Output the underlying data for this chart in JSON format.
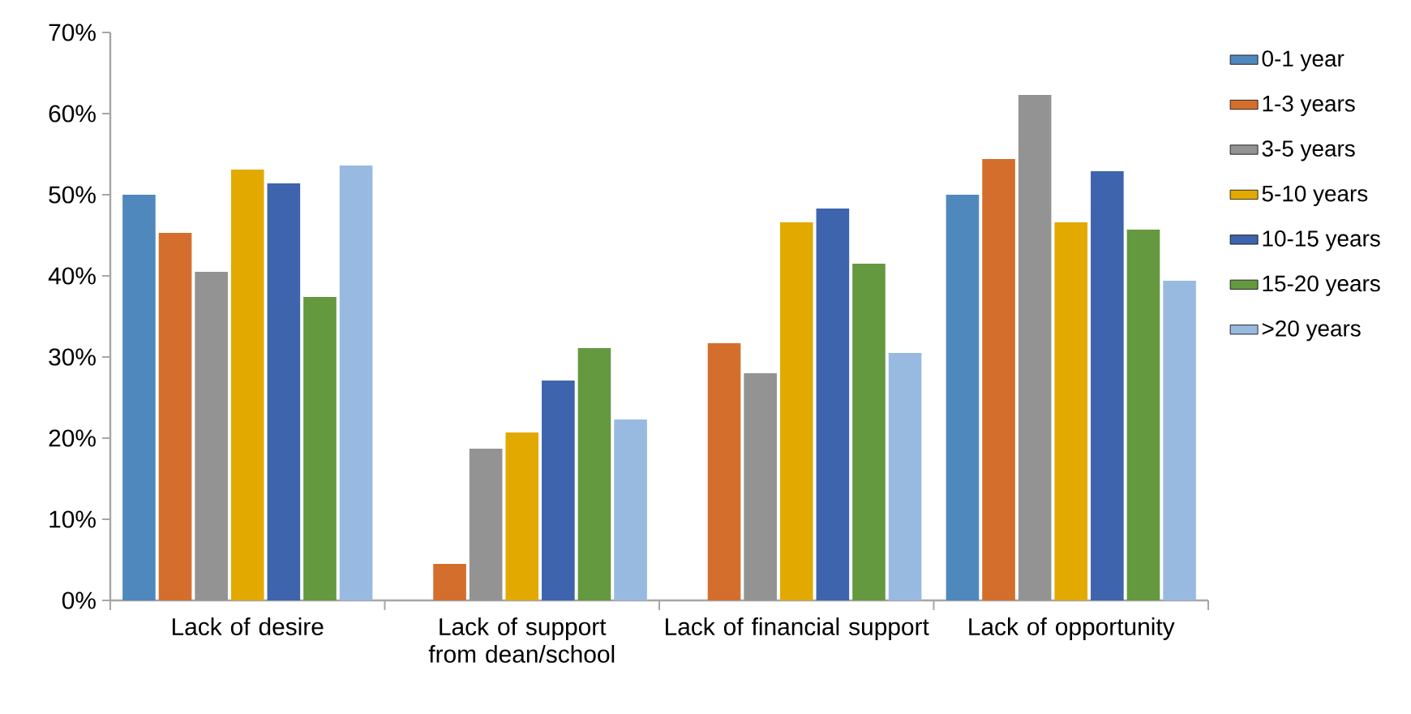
{
  "chart_data": {
    "type": "bar",
    "categories": [
      "Lack of desire",
      "Lack of support from dean/school",
      "Lack of financial support",
      "Lack of opportunity"
    ],
    "series": [
      {
        "name": "0-1 year",
        "color": "#4f88bd",
        "values": [
          50,
          0,
          0,
          50
        ]
      },
      {
        "name": "1-3 years",
        "color": "#d46e2c",
        "values": [
          45.3,
          4.5,
          31.7,
          54.4
        ]
      },
      {
        "name": "3-5 years",
        "color": "#939393",
        "values": [
          40.5,
          18.7,
          28,
          62.3
        ]
      },
      {
        "name": "5-10 years",
        "color": "#e2aa00",
        "values": [
          53.1,
          20.7,
          46.6,
          46.6
        ]
      },
      {
        "name": "10-15 years",
        "color": "#3d64ad",
        "values": [
          51.4,
          27.1,
          48.3,
          52.9
        ]
      },
      {
        "name": "15-20 years",
        "color": "#64993f",
        "values": [
          37.4,
          31.1,
          41.5,
          45.7
        ]
      },
      {
        "name": ">20 years",
        "color": "#99bae0",
        "values": [
          53.6,
          22.3,
          30.5,
          39.4
        ]
      }
    ],
    "ylim": [
      0,
      70
    ],
    "yticks": [
      {
        "value": 0,
        "label": "0%"
      },
      {
        "value": 10,
        "label": "10%"
      },
      {
        "value": 20,
        "label": "20%"
      },
      {
        "value": 30,
        "label": "30%"
      },
      {
        "value": 40,
        "label": "40%"
      },
      {
        "value": 50,
        "label": "50%"
      },
      {
        "value": 60,
        "label": "60%"
      },
      {
        "value": 70,
        "label": "70%"
      }
    ],
    "grid": false,
    "legend": "right"
  }
}
